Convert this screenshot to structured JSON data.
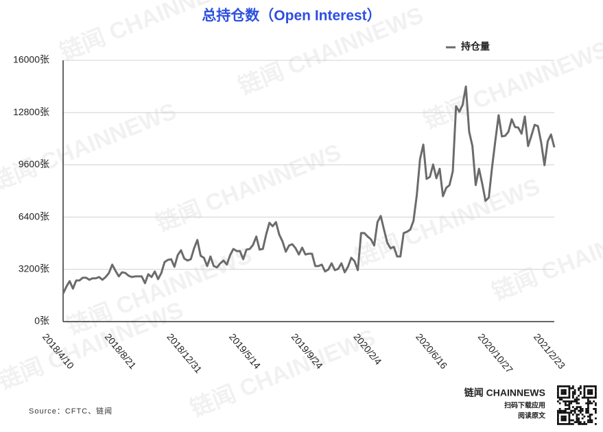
{
  "chart_data": {
    "type": "line",
    "title": "总持仓数（Open Interest）",
    "watermark": "链闻 CHAINNEWS",
    "source": "Source：CFTC、链闻",
    "brand": "链闻 CHAINNEWS",
    "brand_line1": "扫码下载应用",
    "brand_line2": "阅读原文",
    "legend_position": "top-right",
    "grid": true,
    "categories": [
      "2018/4/10",
      null,
      null,
      null,
      null,
      null,
      null,
      null,
      null,
      null,
      null,
      null,
      null,
      null,
      null,
      null,
      null,
      null,
      null,
      "2018/8/21",
      null,
      null,
      null,
      null,
      null,
      null,
      null,
      null,
      null,
      null,
      null,
      null,
      null,
      null,
      null,
      null,
      null,
      null,
      "2018/12/31",
      null,
      null,
      null,
      null,
      null,
      null,
      null,
      null,
      null,
      null,
      null,
      null,
      null,
      null,
      null,
      null,
      null,
      null,
      "2019/5/14",
      null,
      null,
      null,
      null,
      null,
      null,
      null,
      null,
      null,
      null,
      null,
      null,
      null,
      null,
      null,
      null,
      null,
      null,
      "2019/9/24",
      null,
      null,
      null,
      null,
      null,
      null,
      null,
      null,
      null,
      null,
      null,
      null,
      null,
      null,
      null,
      null,
      null,
      null,
      "2020/2/4",
      null,
      null,
      null,
      null,
      null,
      null,
      null,
      null,
      null,
      null,
      null,
      null,
      null,
      null,
      null,
      null,
      null,
      null,
      "2020/6/16",
      null,
      null,
      null,
      null,
      null,
      null,
      null,
      null,
      null,
      null,
      null,
      null,
      null,
      null,
      null,
      null,
      null,
      null,
      "2020/10/27",
      null,
      null,
      null,
      null,
      null,
      null,
      null,
      null,
      null,
      null,
      null,
      null,
      null,
      null,
      null,
      null,
      "2021/2/23"
    ],
    "series": [
      {
        "name": "持仓量",
        "color": "#6b6b6b",
        "values": [
          1720,
          2140,
          2480,
          2020,
          2520,
          2520,
          2690,
          2690,
          2560,
          2650,
          2650,
          2730,
          2560,
          2730,
          2980,
          3490,
          3110,
          2770,
          3020,
          2980,
          2810,
          2730,
          2770,
          2770,
          2770,
          2350,
          2900,
          2730,
          3070,
          2600,
          2980,
          3650,
          3780,
          3820,
          3360,
          4070,
          4370,
          3860,
          3740,
          3820,
          4490,
          5000,
          4030,
          3910,
          3400,
          3990,
          3400,
          3320,
          3570,
          3740,
          3490,
          4070,
          4450,
          4320,
          4320,
          3820,
          4410,
          4450,
          4700,
          5210,
          4410,
          4450,
          5330,
          6050,
          5840,
          6090,
          5330,
          4910,
          4280,
          4660,
          4740,
          4490,
          4110,
          4530,
          4110,
          4160,
          4160,
          3400,
          3400,
          3490,
          3070,
          3190,
          3570,
          3150,
          3230,
          3570,
          3020,
          3360,
          3910,
          3700,
          3150,
          5420,
          5420,
          5210,
          5040,
          4660,
          6090,
          6470,
          5630,
          4830,
          4490,
          4580,
          3990,
          3990,
          5420,
          5500,
          5630,
          6170,
          7730,
          9950,
          10840,
          8740,
          8860,
          9620,
          8780,
          9360,
          7680,
          8190,
          8360,
          9200,
          13190,
          12850,
          13270,
          14400,
          11630,
          10750,
          8360,
          9360,
          8440,
          7390,
          7600,
          9450,
          11090,
          12640,
          11340,
          11380,
          11630,
          12390,
          11920,
          11880,
          11510,
          12560,
          10750,
          11380,
          12050,
          11970,
          10960,
          9580,
          11050,
          11460,
          10670
        ]
      }
    ],
    "ylim": [
      0,
      16000
    ],
    "yticks": [
      {
        "value": 0,
        "label": "0张"
      },
      {
        "value": 3200,
        "label": "3200张"
      },
      {
        "value": 6400,
        "label": "6400张"
      },
      {
        "value": 9600,
        "label": "9600张"
      },
      {
        "value": 12800,
        "label": "12800张"
      },
      {
        "value": 16000,
        "label": "16000张"
      }
    ]
  }
}
